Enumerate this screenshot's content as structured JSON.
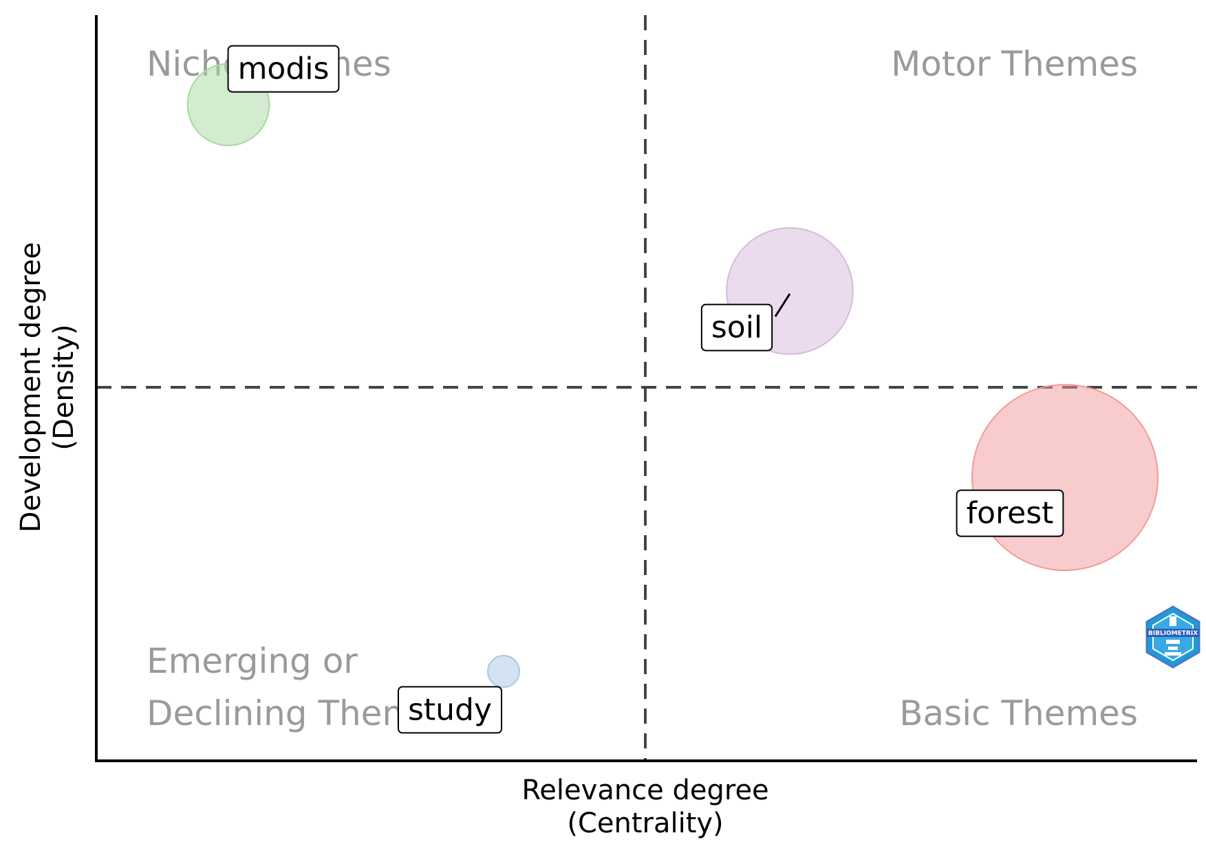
{
  "chart_data": {
    "type": "scatter",
    "variant": "bubble",
    "xlabel": [
      "Relevance degree",
      "(Centrality)"
    ],
    "ylabel": [
      "Development degree",
      "(Density)"
    ],
    "xlim": [
      0,
      1
    ],
    "ylim": [
      0,
      1
    ],
    "x_ticks_shown": false,
    "y_ticks_shown": false,
    "reference_lines": {
      "x": 0.5,
      "y": 0.5,
      "style": "dashed"
    },
    "quadrant_labels": {
      "top_left": [
        "Niche Themes"
      ],
      "top_right": [
        "Motor Themes"
      ],
      "bottom_left": [
        "Emerging or",
        "Declining Themes"
      ],
      "bottom_right": [
        "Basic Themes"
      ]
    },
    "points": [
      {
        "label": "modis",
        "x": 0.12,
        "y": 0.88,
        "size": 0.44,
        "color": "#a8d8a0"
      },
      {
        "label": "soil",
        "x": 0.63,
        "y": 0.63,
        "size": 0.68,
        "color": "#d7b9dc"
      },
      {
        "label": "forest",
        "x": 0.88,
        "y": 0.38,
        "size": 1.0,
        "color": "#f29a9a"
      },
      {
        "label": "study",
        "x": 0.37,
        "y": 0.12,
        "size": 0.17,
        "color": "#a9c8e3"
      }
    ],
    "grid": false,
    "legend": "none",
    "watermark": "BIBLIOMETRIX"
  }
}
